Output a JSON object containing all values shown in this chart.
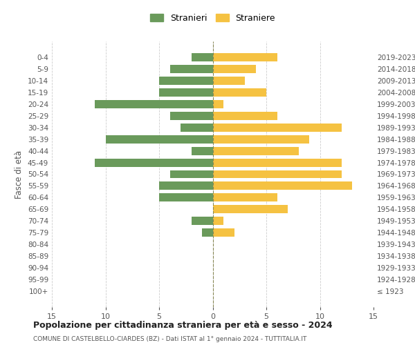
{
  "age_groups": [
    "100+",
    "95-99",
    "90-94",
    "85-89",
    "80-84",
    "75-79",
    "70-74",
    "65-69",
    "60-64",
    "55-59",
    "50-54",
    "45-49",
    "40-44",
    "35-39",
    "30-34",
    "25-29",
    "20-24",
    "15-19",
    "10-14",
    "5-9",
    "0-4"
  ],
  "birth_years": [
    "≤ 1923",
    "1924-1928",
    "1929-1933",
    "1934-1938",
    "1939-1943",
    "1944-1948",
    "1949-1953",
    "1954-1958",
    "1959-1963",
    "1964-1968",
    "1969-1973",
    "1974-1978",
    "1979-1983",
    "1984-1988",
    "1989-1993",
    "1994-1998",
    "1999-2003",
    "2004-2008",
    "2009-2013",
    "2014-2018",
    "2019-2023"
  ],
  "males": [
    0,
    0,
    0,
    0,
    0,
    1,
    2,
    0,
    5,
    5,
    4,
    11,
    2,
    10,
    3,
    4,
    11,
    5,
    5,
    4,
    2
  ],
  "females": [
    0,
    0,
    0,
    0,
    0,
    2,
    1,
    7,
    6,
    13,
    12,
    12,
    8,
    9,
    12,
    6,
    1,
    5,
    3,
    4,
    6
  ],
  "male_color": "#6a9a5b",
  "female_color": "#f5c242",
  "bar_height": 0.7,
  "xlim": 15,
  "title": "Popolazione per cittadinanza straniera per età e sesso - 2024",
  "subtitle": "COMUNE DI CASTELBELLO-CIARDES (BZ) - Dati ISTAT al 1° gennaio 2024 - TUTTITALIA.IT",
  "ylabel_left": "Fasce di età",
  "legend_male": "Stranieri",
  "legend_female": "Straniere",
  "background_color": "#ffffff",
  "grid_color": "#cccccc",
  "tick_color": "#888888",
  "label_color": "#555555"
}
